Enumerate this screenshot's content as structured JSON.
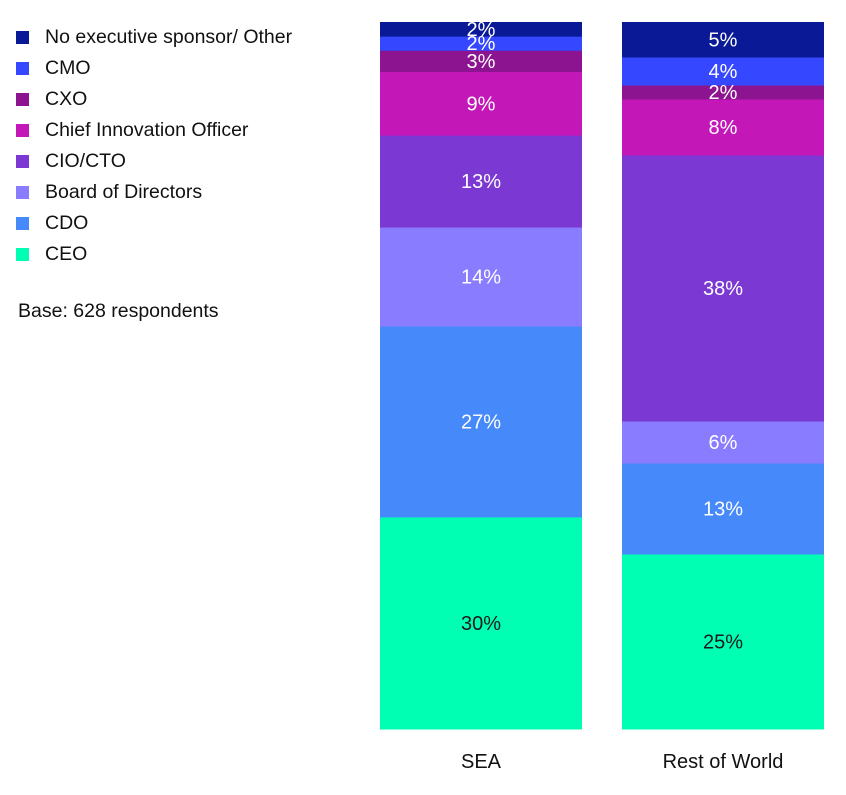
{
  "legend": {
    "items": [
      {
        "label": "No executive sponsor/ Other",
        "color": "#0a1a96"
      },
      {
        "label": "CMO",
        "color": "#3547ff"
      },
      {
        "label": "CXO",
        "color": "#8c1490"
      },
      {
        "label": "Chief Innovation Officer",
        "color": "#c317b8"
      },
      {
        "label": "CIO/CTO",
        "color": "#7b38d3"
      },
      {
        "label": "Board of Directors",
        "color": "#8a7cff"
      },
      {
        "label": "CDO",
        "color": "#4689fb"
      },
      {
        "label": "CEO",
        "color": "#00ffb3"
      }
    ]
  },
  "note": "Base: 628 respondents",
  "chart_data": {
    "type": "bar",
    "stacked": true,
    "categories": [
      "SEA",
      "Rest of World"
    ],
    "stack_order": "bottom-to-top",
    "series": [
      {
        "name": "CEO",
        "color": "#00ffb3",
        "values": [
          30,
          25
        ],
        "labels": [
          "30%",
          "25%"
        ]
      },
      {
        "name": "CDO",
        "color": "#4689fb",
        "values": [
          27,
          13
        ],
        "labels": [
          "27%",
          "13%"
        ]
      },
      {
        "name": "Board of Directors",
        "color": "#8a7cff",
        "values": [
          14,
          6
        ],
        "labels": [
          "14%",
          "6%"
        ]
      },
      {
        "name": "CIO/CTO",
        "color": "#7b38d3",
        "values": [
          13,
          38
        ],
        "labels": [
          "13%",
          "38%"
        ]
      },
      {
        "name": "Chief Innovation Officer",
        "color": "#c317b8",
        "values": [
          9,
          8
        ],
        "labels": [
          "9%",
          "8%"
        ]
      },
      {
        "name": "CXO",
        "color": "#8c1490",
        "values": [
          3,
          2
        ],
        "labels": [
          "3%",
          "2%"
        ]
      },
      {
        "name": "CMO",
        "color": "#3547ff",
        "values": [
          2,
          4
        ],
        "labels": [
          "2%",
          "4%"
        ]
      },
      {
        "name": "No executive sponsor/ Other",
        "color": "#0a1a96",
        "values": [
          2,
          5
        ],
        "labels": [
          "2%",
          "5%"
        ]
      }
    ],
    "legend_position": "top-left",
    "grid": false
  }
}
